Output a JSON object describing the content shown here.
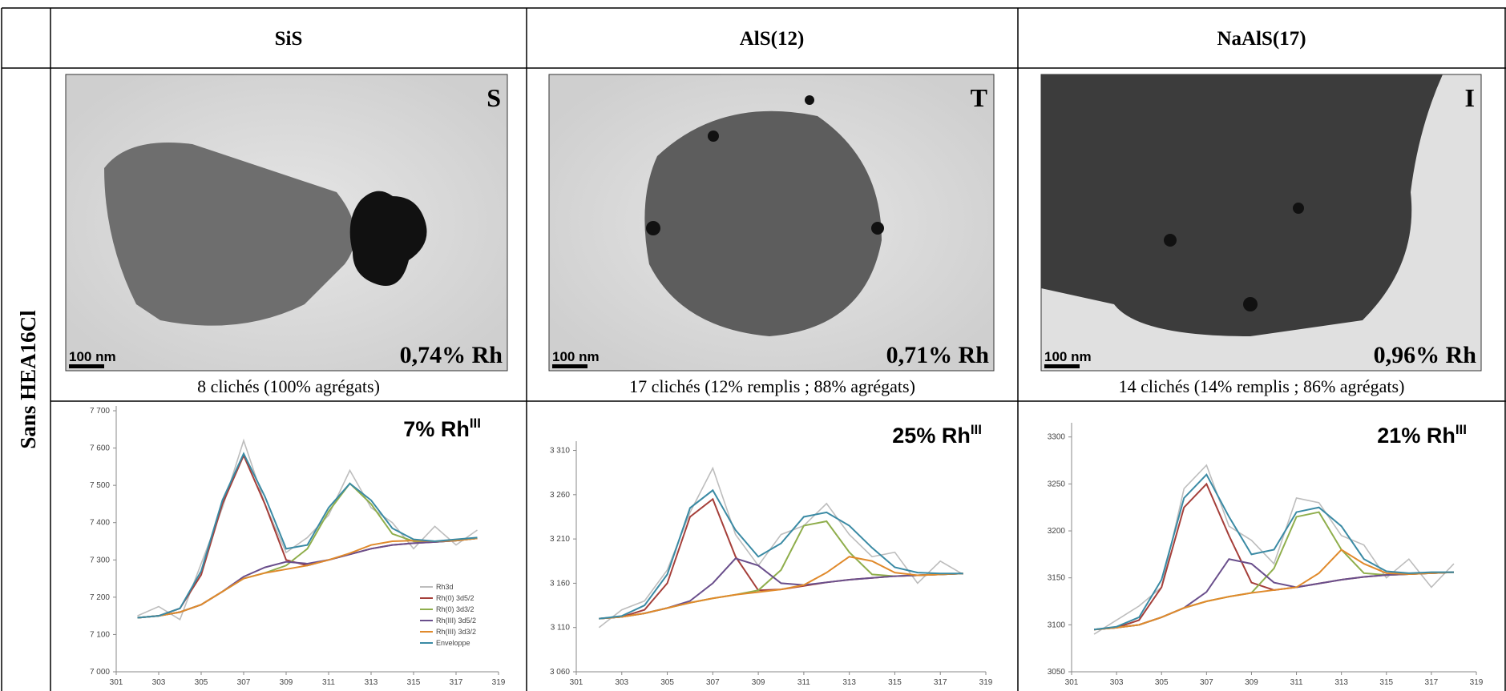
{
  "header": {
    "columns": [
      "SiS",
      "AlS(12)",
      "NaAlS(17)"
    ]
  },
  "row_label": "Sans HEA16Cl",
  "images": [
    {
      "letter": "S",
      "scale_bar": "100 nm",
      "rh_content": "0,74% Rh",
      "caption": "8 clichés (100% agrégats)"
    },
    {
      "letter": "T",
      "scale_bar": "100 nm",
      "rh_content": "0,71% Rh",
      "caption": "17 clichés (12% remplis ; 88% agrégats)"
    },
    {
      "letter": "I",
      "scale_bar": "100 nm",
      "rh_content": "0,96% Rh",
      "caption": "14 clichés (14% remplis ; 86% agrégats)"
    }
  ],
  "charts": [
    {
      "type": "line",
      "annotation": "7% Rh",
      "annotation_sup": "III",
      "x": [
        302,
        303,
        304,
        305,
        306,
        307,
        308,
        309,
        310,
        311,
        312,
        313,
        314,
        315,
        316,
        317,
        318
      ],
      "xlim": [
        301,
        319
      ],
      "xticks": [
        301,
        303,
        305,
        307,
        309,
        311,
        313,
        315,
        317,
        319
      ],
      "ylim": [
        7000,
        7700
      ],
      "yticks": [
        {
          "value": 7000,
          "label": "7 000"
        },
        {
          "value": 7100,
          "label": "7 100"
        },
        {
          "value": 7200,
          "label": "7 200"
        },
        {
          "value": 7300,
          "label": "7 300"
        },
        {
          "value": 7400,
          "label": "7 400"
        },
        {
          "value": 7500,
          "label": "7 500"
        },
        {
          "value": 7600,
          "label": "7 600"
        },
        {
          "value": 7700,
          "label": "7 700"
        }
      ],
      "series": [
        {
          "name": "Rh3d",
          "color": "#bdbdbd",
          "values": [
            7150,
            7175,
            7140,
            7290,
            7440,
            7620,
            7450,
            7320,
            7360,
            7420,
            7540,
            7440,
            7400,
            7330,
            7390,
            7340,
            7380
          ]
        },
        {
          "name": "Rh(0) 3d5/2",
          "color": "#a53f3a",
          "values": [
            7145,
            7150,
            7170,
            7260,
            7450,
            7580,
            7450,
            7300,
            7285,
            7300,
            7315,
            7330,
            7340,
            7345,
            7348,
            7352,
            7358
          ]
        },
        {
          "name": "Rh(0) 3d3/2",
          "color": "#8fae4c",
          "values": [
            7145,
            7150,
            7160,
            7180,
            7215,
            7250,
            7265,
            7285,
            7330,
            7430,
            7505,
            7450,
            7370,
            7350,
            7348,
            7352,
            7358
          ]
        },
        {
          "name": "Rh(III) 3d5/2",
          "color": "#6a4f8c",
          "values": [
            7145,
            7150,
            7160,
            7180,
            7215,
            7255,
            7280,
            7295,
            7290,
            7300,
            7315,
            7330,
            7340,
            7345,
            7348,
            7352,
            7358
          ]
        },
        {
          "name": "Rh(III) 3d3/2",
          "color": "#e08a2c",
          "values": [
            7145,
            7150,
            7160,
            7180,
            7215,
            7250,
            7265,
            7275,
            7285,
            7300,
            7318,
            7340,
            7350,
            7352,
            7350,
            7352,
            7358
          ]
        },
        {
          "name": "Enveloppe",
          "color": "#3a8aa4",
          "values": [
            7145,
            7150,
            7170,
            7270,
            7460,
            7585,
            7470,
            7330,
            7340,
            7440,
            7505,
            7460,
            7385,
            7355,
            7350,
            7355,
            7360
          ]
        }
      ]
    },
    {
      "type": "line",
      "annotation": "25% Rh",
      "annotation_sup": "III",
      "x": [
        302,
        303,
        304,
        305,
        306,
        307,
        308,
        309,
        310,
        311,
        312,
        313,
        314,
        315,
        316,
        317,
        318
      ],
      "xlim": [
        301,
        319
      ],
      "xticks": [
        301,
        303,
        305,
        307,
        309,
        311,
        313,
        315,
        317,
        319
      ],
      "ylim": [
        3060,
        3315
      ],
      "yticks": [
        {
          "value": 3060,
          "label": "3 060"
        },
        {
          "value": 3110,
          "label": "3 110"
        },
        {
          "value": 3160,
          "label": "3 160"
        },
        {
          "value": 3210,
          "label": "3 210"
        },
        {
          "value": 3260,
          "label": "3 260"
        },
        {
          "value": 3310,
          "label": "3 310"
        }
      ],
      "series": [
        {
          "color": "#bdbdbd",
          "values": [
            3110,
            3130,
            3140,
            3175,
            3240,
            3290,
            3215,
            3180,
            3215,
            3225,
            3250,
            3215,
            3190,
            3195,
            3160,
            3185,
            3170
          ]
        },
        {
          "color": "#a53f3a",
          "values": [
            3120,
            3122,
            3130,
            3160,
            3235,
            3255,
            3190,
            3152,
            3153,
            3157,
            3161,
            3164,
            3166,
            3168,
            3169,
            3170,
            3171
          ]
        },
        {
          "color": "#8fae4c",
          "values": [
            3120,
            3122,
            3126,
            3132,
            3138,
            3143,
            3147,
            3152,
            3175,
            3225,
            3230,
            3195,
            3170,
            3168,
            3169,
            3170,
            3171
          ]
        },
        {
          "color": "#6a4f8c",
          "values": [
            3120,
            3122,
            3126,
            3132,
            3140,
            3160,
            3188,
            3180,
            3160,
            3158,
            3161,
            3164,
            3166,
            3168,
            3169,
            3170,
            3171
          ]
        },
        {
          "color": "#e08a2c",
          "values": [
            3120,
            3122,
            3126,
            3132,
            3138,
            3143,
            3147,
            3150,
            3153,
            3158,
            3172,
            3190,
            3185,
            3172,
            3169,
            3170,
            3171
          ]
        },
        {
          "color": "#3a8aa4",
          "values": [
            3120,
            3123,
            3135,
            3170,
            3245,
            3265,
            3220,
            3190,
            3205,
            3235,
            3240,
            3225,
            3200,
            3178,
            3172,
            3171,
            3171
          ]
        }
      ]
    },
    {
      "type": "line",
      "annotation": "21% Rh",
      "annotation_sup": "III",
      "x": [
        302,
        303,
        304,
        305,
        306,
        307,
        308,
        309,
        310,
        311,
        312,
        313,
        314,
        315,
        316,
        317,
        318
      ],
      "xlim": [
        301,
        319
      ],
      "xticks": [
        301,
        303,
        305,
        307,
        309,
        311,
        313,
        315,
        317,
        319
      ],
      "ylim": [
        3050,
        3310
      ],
      "yticks": [
        3050,
        3100,
        3150,
        3200,
        3250,
        3300
      ],
      "series": [
        {
          "color": "#bdbdbd",
          "values": [
            3090,
            3105,
            3120,
            3140,
            3245,
            3270,
            3205,
            3190,
            3165,
            3235,
            3230,
            3195,
            3185,
            3150,
            3170,
            3140,
            3165
          ]
        },
        {
          "color": "#a53f3a",
          "values": [
            3095,
            3097,
            3105,
            3140,
            3225,
            3250,
            3195,
            3145,
            3137,
            3140,
            3144,
            3148,
            3151,
            3153,
            3154,
            3155,
            3156
          ]
        },
        {
          "color": "#8fae4c",
          "values": [
            3095,
            3097,
            3100,
            3108,
            3118,
            3125,
            3130,
            3134,
            3160,
            3215,
            3220,
            3180,
            3155,
            3153,
            3154,
            3155,
            3156
          ]
        },
        {
          "color": "#6a4f8c",
          "values": [
            3095,
            3097,
            3100,
            3108,
            3118,
            3135,
            3170,
            3165,
            3145,
            3140,
            3144,
            3148,
            3151,
            3153,
            3154,
            3155,
            3156
          ]
        },
        {
          "color": "#e08a2c",
          "values": [
            3095,
            3097,
            3100,
            3108,
            3118,
            3125,
            3130,
            3134,
            3137,
            3140,
            3155,
            3180,
            3165,
            3155,
            3154,
            3155,
            3156
          ]
        },
        {
          "color": "#3a8aa4",
          "values": [
            3095,
            3098,
            3108,
            3148,
            3235,
            3260,
            3215,
            3175,
            3180,
            3220,
            3225,
            3205,
            3170,
            3157,
            3155,
            3156,
            3156
          ]
        }
      ]
    }
  ]
}
